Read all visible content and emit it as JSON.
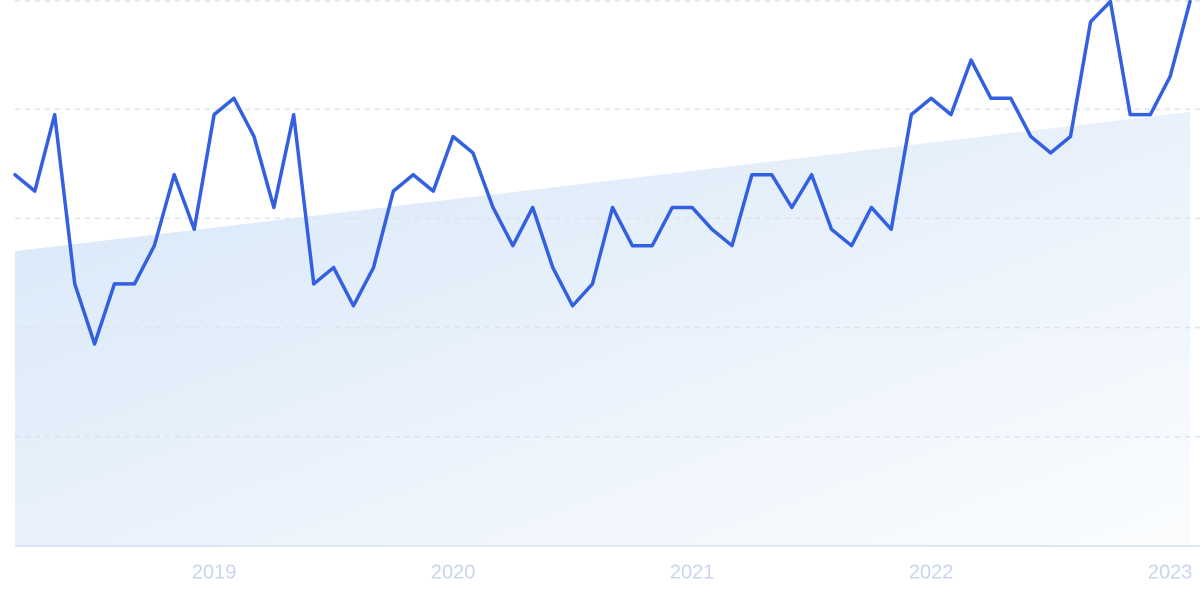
{
  "chart_data": {
    "type": "line",
    "x": [
      2018.167,
      2018.25,
      2018.333,
      2018.417,
      2018.5,
      2018.583,
      2018.667,
      2018.75,
      2018.833,
      2018.917,
      2019,
      2019.083,
      2019.167,
      2019.25,
      2019.333,
      2019.417,
      2019.5,
      2019.583,
      2019.667,
      2019.75,
      2019.833,
      2019.917,
      2020,
      2020.083,
      2020.167,
      2020.25,
      2020.333,
      2020.417,
      2020.5,
      2020.583,
      2020.667,
      2020.75,
      2020.833,
      2020.917,
      2021,
      2021.083,
      2021.167,
      2021.25,
      2021.333,
      2021.417,
      2021.5,
      2021.583,
      2021.667,
      2021.75,
      2021.833,
      2021.917,
      2022,
      2022.083,
      2022.167,
      2022.25,
      2022.333,
      2022.417,
      2022.5,
      2022.583,
      2022.667,
      2022.75,
      2022.833,
      2022.917,
      2023,
      2023.083
    ],
    "series": [
      {
        "color": "#3360e0",
        "values": [
          68,
          65,
          79,
          48,
          37,
          48,
          48,
          55,
          68,
          58,
          79,
          82,
          75,
          62,
          79,
          48,
          51,
          44,
          51,
          65,
          68,
          65,
          75,
          72,
          62,
          55,
          62,
          51,
          44,
          48,
          62,
          55,
          55,
          62,
          62,
          58,
          55,
          68,
          68,
          62,
          68,
          58,
          55,
          62,
          58,
          79,
          82,
          79,
          89,
          82,
          82,
          75,
          72,
          75,
          96,
          100,
          79,
          79,
          86,
          100
        ]
      }
    ],
    "trend": {
      "values": [
        54,
        79.5
      ],
      "color": "#d6e6f8"
    },
    "xlim": [
      2018.167,
      2023.083
    ],
    "xticks": [
      2019,
      2020,
      2021,
      2022,
      2023
    ],
    "ylim": [
      0,
      100
    ],
    "yticks": [
      0,
      20,
      40,
      60,
      80,
      100
    ],
    "ytick_labels": false,
    "grid": true
  }
}
